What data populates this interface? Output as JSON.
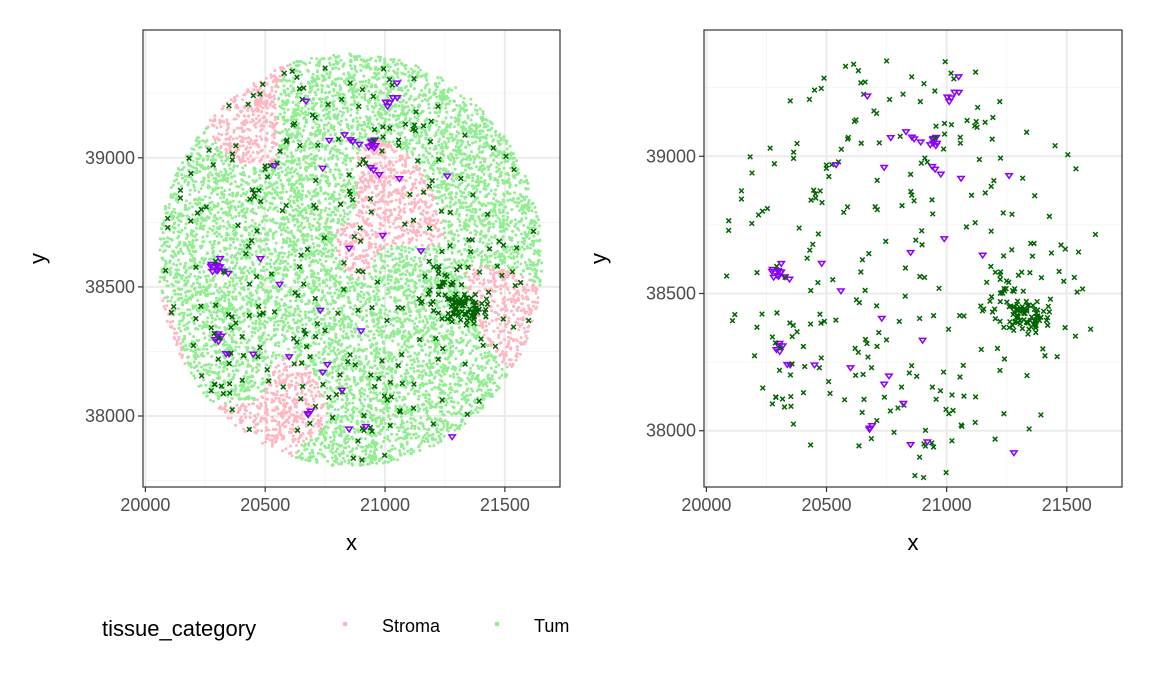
{
  "colors": {
    "stroma": "#ffb6c1",
    "tumor": "#90ee90",
    "cell_a": "#006400",
    "cell_b": "#8b00ff",
    "grid_major": "#ebebeb",
    "grid_minor": "#f5f5f5",
    "panel_border": "#333333"
  },
  "legend": {
    "title": "tissue_category",
    "items": [
      {
        "label": "Stroma",
        "color": "#ffb6c1"
      },
      {
        "label": "Tum",
        "color": "#90ee90"
      }
    ]
  },
  "chart_data": [
    {
      "type": "scatter",
      "panel": "left",
      "xlabel": "x",
      "ylabel": "y",
      "xlim": [
        19990,
        21730
      ],
      "ylim": [
        37725,
        39495
      ],
      "x_ticks": [
        20000,
        20500,
        21000,
        21500
      ],
      "y_ticks": [
        38000,
        38500,
        39000
      ],
      "grid": true,
      "background_region": {
        "shape": "circle",
        "center": [
          20855,
          38605
        ],
        "radius": 800
      },
      "series": [
        {
          "name": "Stroma",
          "marker": "dot",
          "color": "#ffb6c1"
        },
        {
          "name": "Tum",
          "marker": "dot",
          "color": "#90ee90"
        },
        {
          "marker": "x",
          "color": "#006400"
        },
        {
          "marker": "triangle-down",
          "color": "#8b00ff"
        }
      ]
    },
    {
      "type": "scatter",
      "panel": "right",
      "xlabel": "x",
      "ylabel": "y",
      "xlim": [
        19990,
        21730
      ],
      "ylim": [
        37795,
        39460
      ],
      "x_ticks": [
        20000,
        20500,
        21000,
        21500
      ],
      "y_ticks": [
        38000,
        38500,
        39000
      ],
      "grid": true,
      "series": [
        {
          "marker": "x",
          "color": "#006400"
        },
        {
          "marker": "triangle-down",
          "color": "#8b00ff"
        }
      ]
    }
  ]
}
